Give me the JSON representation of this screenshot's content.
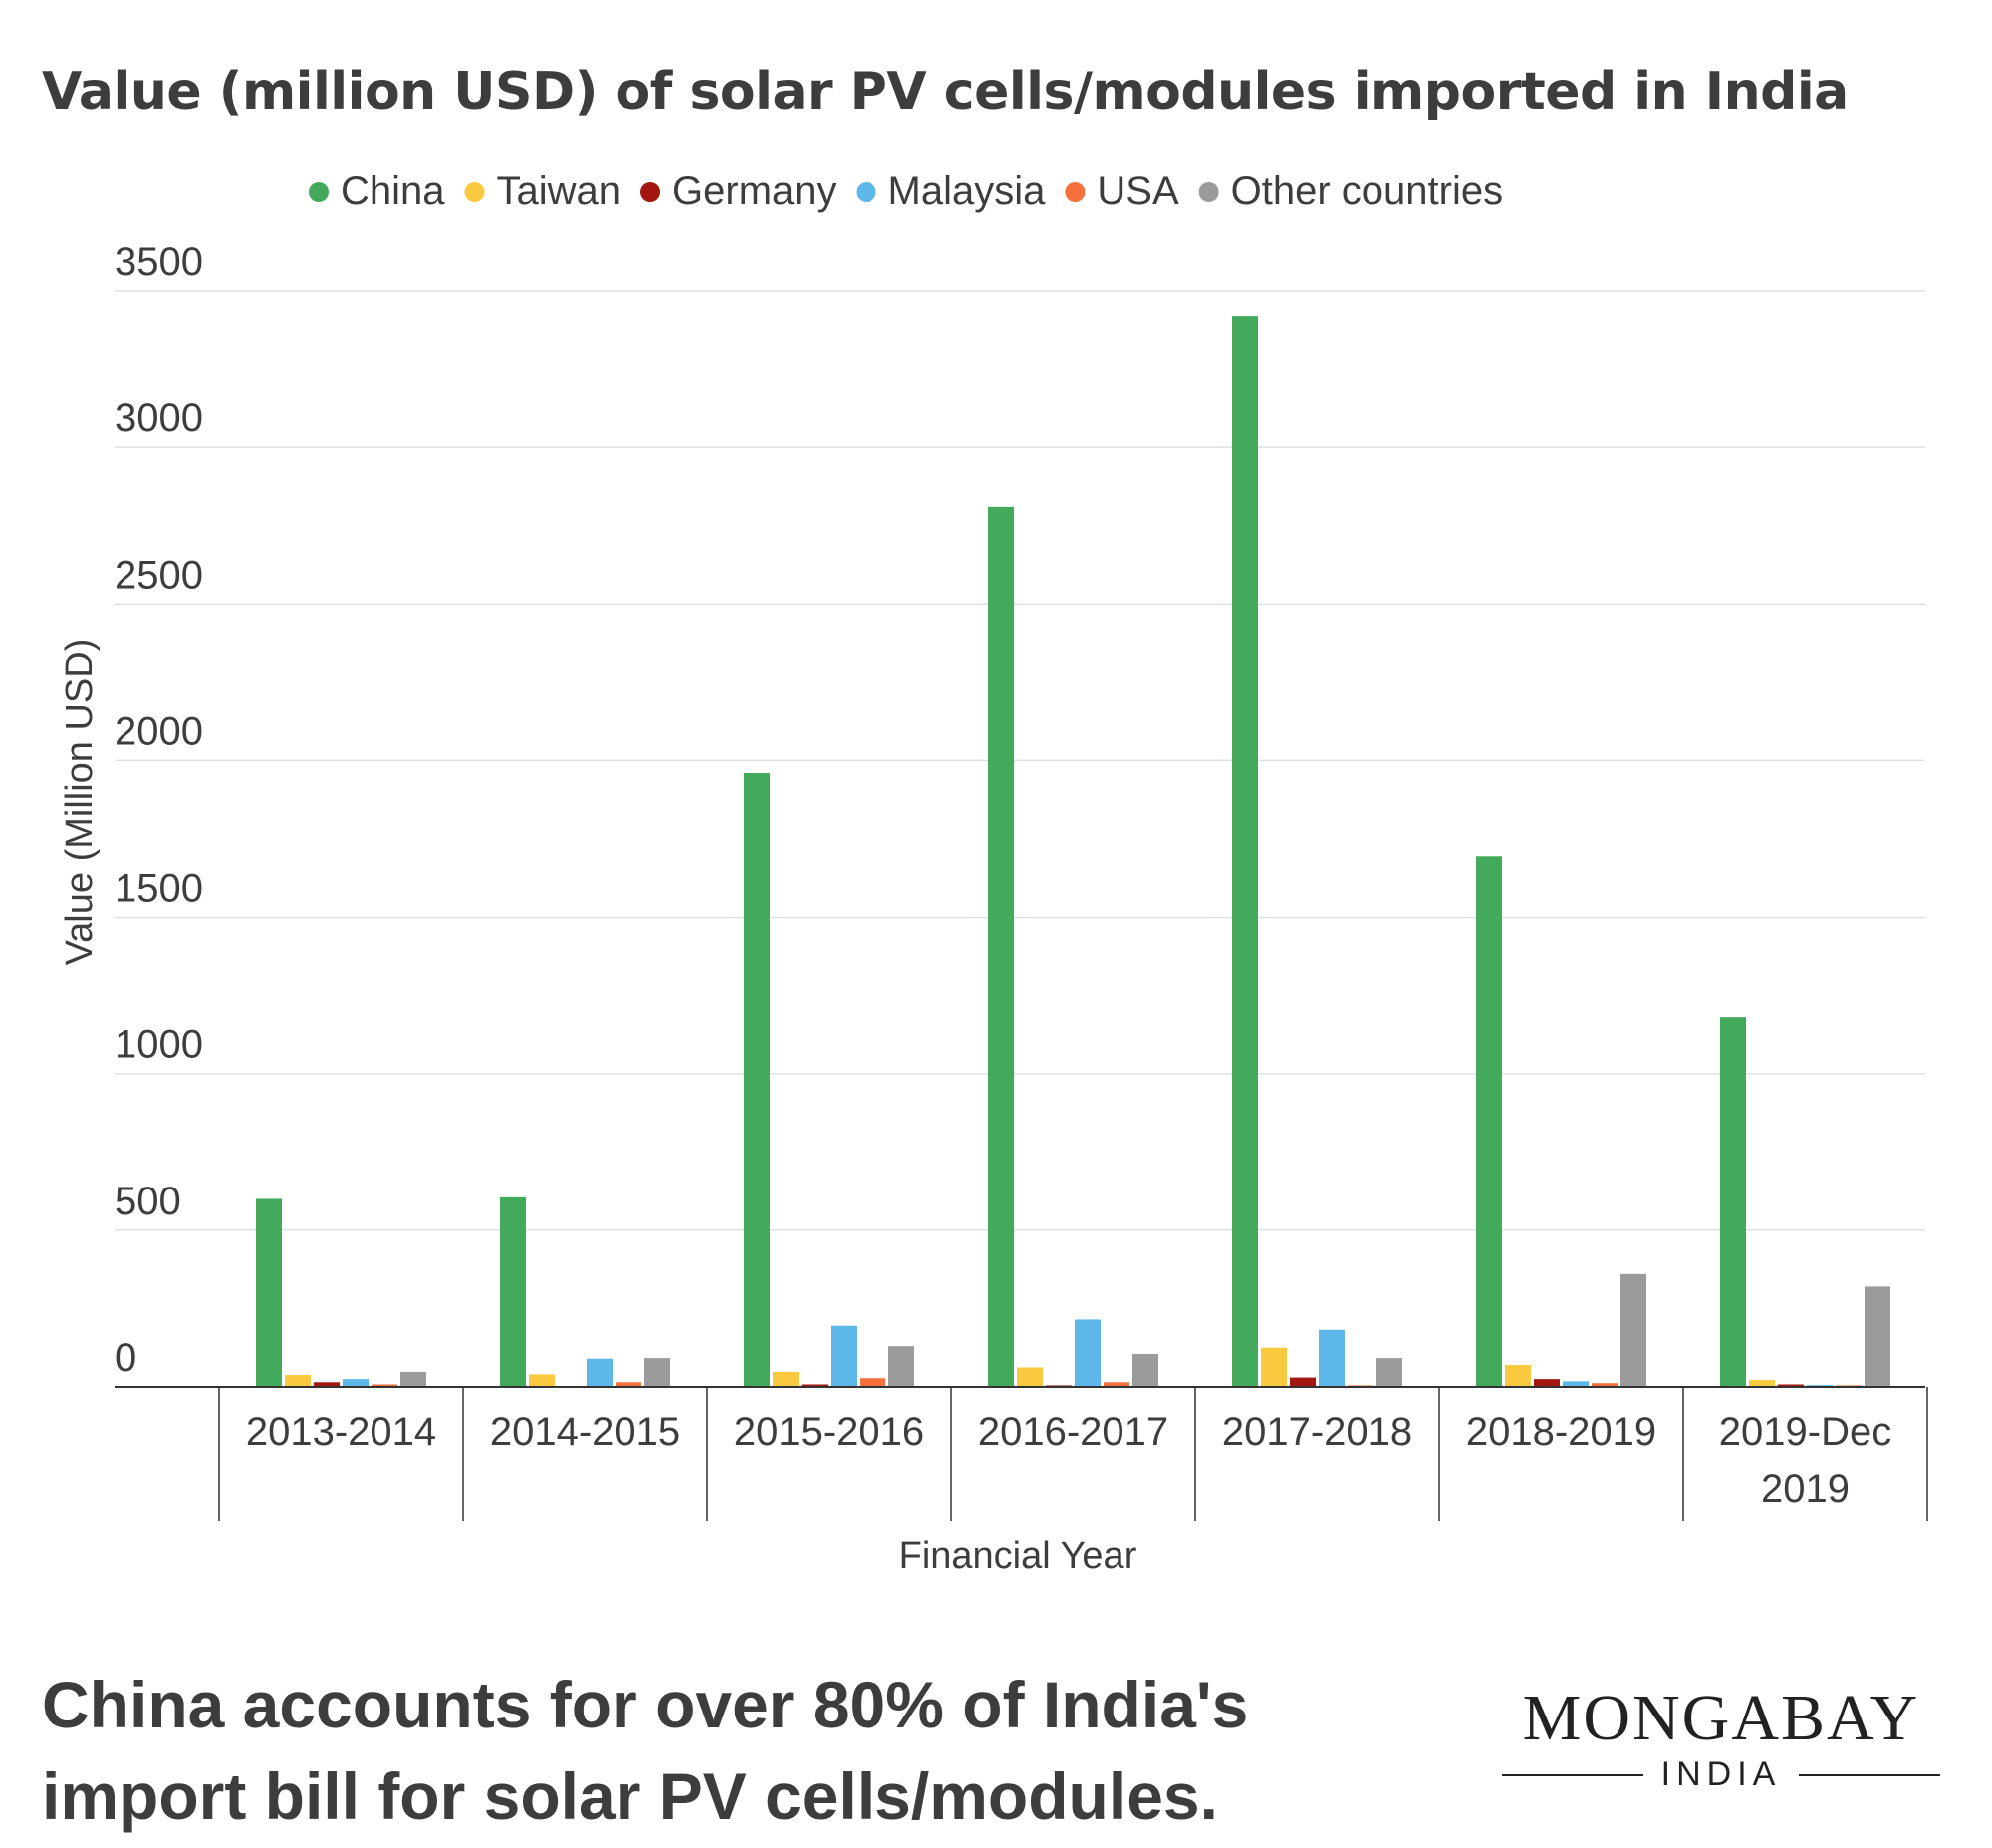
{
  "title": "Value (million USD) of solar PV cells/modules imported in India",
  "footer": {
    "line1": "China accounts for over 80% of India's",
    "line2": "import bill for solar PV cells/modules."
  },
  "logo": {
    "word": "MONGABAY",
    "sub": "INDIA"
  },
  "chart_data": {
    "type": "bar",
    "xlabel": "Financial Year",
    "ylabel": "Value (Million USD)",
    "ylim": [
      0,
      3500
    ],
    "yticks": [
      0,
      500,
      1000,
      1500,
      2000,
      2500,
      3000,
      3500
    ],
    "grid": true,
    "legend_position": "top",
    "categories": [
      [
        "2013-2014"
      ],
      [
        "2014-2015"
      ],
      [
        "2015-2016"
      ],
      [
        "2016-2017"
      ],
      [
        "2017-2018"
      ],
      [
        "2018-2019"
      ],
      [
        "2019-Dec",
        "2019"
      ]
    ],
    "series": [
      {
        "name": "China",
        "color": "#43a95b",
        "values": [
          600,
          605,
          1960,
          2810,
          3420,
          1695,
          1180
        ]
      },
      {
        "name": "Taiwan",
        "color": "#f9ca3f",
        "values": [
          38,
          40,
          48,
          62,
          125,
          70,
          22
        ]
      },
      {
        "name": "Germany",
        "color": "#a3170f",
        "values": [
          15,
          0,
          8,
          5,
          30,
          25,
          8
        ]
      },
      {
        "name": "Malaysia",
        "color": "#5db7e9",
        "values": [
          25,
          90,
          195,
          215,
          182,
          18,
          6
        ]
      },
      {
        "name": "USA",
        "color": "#f5703c",
        "values": [
          8,
          15,
          28,
          15,
          5,
          12,
          5
        ]
      },
      {
        "name": "Other countries",
        "color": "#9b9b9b",
        "values": [
          48,
          92,
          130,
          105,
          92,
          360,
          320
        ]
      }
    ]
  }
}
